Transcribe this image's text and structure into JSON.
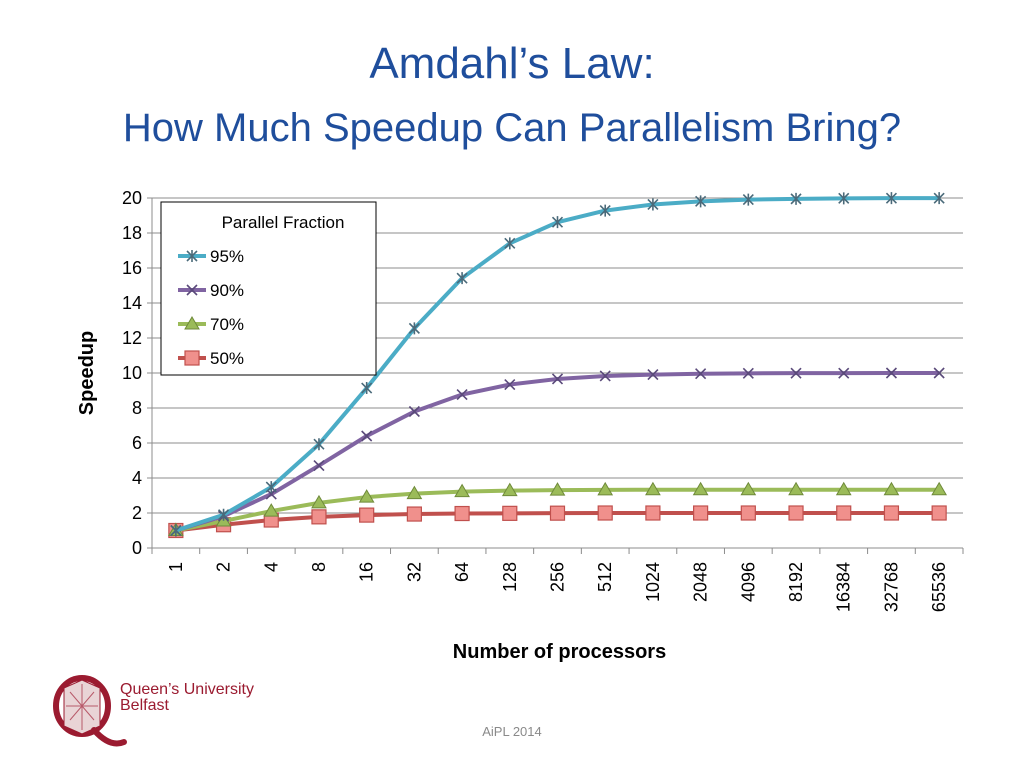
{
  "slide": {
    "title": "Amdahl’s Law:",
    "subtitle": "How Much Speedup Can Parallelism Bring?",
    "footer": "AiPL 2014",
    "logo_text_line1": "Queen’s University",
    "logo_text_line2": "Belfast"
  },
  "colors": {
    "title": "#1f4e9c",
    "grid": "#8c8c8c",
    "series_95": "#4bacc6",
    "series_90": "#8064a2",
    "series_70": "#9bbb59",
    "series_50": "#c0504d",
    "logo": "#9b1b30"
  },
  "chart_data": {
    "type": "line",
    "title": "",
    "xlabel": "Number of processors",
    "ylabel": "Speedup",
    "ylim": [
      0,
      20
    ],
    "yticks": [
      0,
      2,
      4,
      6,
      8,
      10,
      12,
      14,
      16,
      18,
      20
    ],
    "grid": true,
    "legend_title": "Parallel Fraction",
    "legend_position": "top-left",
    "categories": [
      "1",
      "2",
      "4",
      "8",
      "16",
      "32",
      "64",
      "128",
      "256",
      "512",
      "1024",
      "2048",
      "4096",
      "8192",
      "16384",
      "32768",
      "65536"
    ],
    "series": [
      {
        "name": "95%",
        "color": "#4bacc6",
        "marker": "star",
        "values": [
          1,
          1.9,
          3.48,
          5.93,
          9.14,
          12.55,
          15.42,
          17.41,
          18.62,
          19.28,
          19.63,
          19.81,
          19.91,
          19.95,
          19.98,
          19.99,
          19.99
        ]
      },
      {
        "name": "90%",
        "color": "#8064a2",
        "marker": "x",
        "values": [
          1,
          1.82,
          3.08,
          4.71,
          6.4,
          7.8,
          8.77,
          9.34,
          9.66,
          9.83,
          9.91,
          9.96,
          9.98,
          9.99,
          9.99,
          10,
          10
        ]
      },
      {
        "name": "70%",
        "color": "#9bbb59",
        "marker": "triangle",
        "values": [
          1,
          1.54,
          2.11,
          2.58,
          2.91,
          3.11,
          3.22,
          3.28,
          3.31,
          3.32,
          3.33,
          3.33,
          3.33,
          3.33,
          3.33,
          3.33,
          3.33
        ]
      },
      {
        "name": "50%",
        "color": "#c0504d",
        "marker": "square",
        "values": [
          1,
          1.33,
          1.6,
          1.78,
          1.88,
          1.94,
          1.97,
          1.98,
          1.99,
          2,
          2,
          2,
          2,
          2,
          2,
          2,
          2
        ]
      }
    ]
  }
}
